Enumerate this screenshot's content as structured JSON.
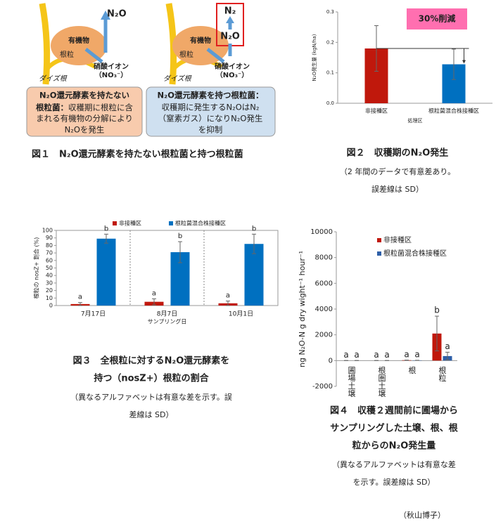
{
  "figure1": {
    "left": {
      "n2o": "N₂O",
      "organic": "有機物",
      "nodule": "根粒",
      "root": "ダイズ根",
      "nitrate": "硝酸イオン",
      "nitrate_formula": "（NO₃⁻）",
      "head": [
        "N₂O還元酵素を持たない",
        "根粒菌："
      ],
      "body": [
        "収穫期に根粒に含",
        "まれる有機物の分解により",
        "N₂Oを発生"
      ]
    },
    "right": {
      "n2": "N₂",
      "n2o": "N₂O",
      "organic": "有機物",
      "nodule": "根粒",
      "root": "ダイズ根",
      "nitrate": "硝酸イオン",
      "nitrate_formula": "（NO₃⁻）",
      "head": [
        "N₂O還元酵素を持つ根粒菌："
      ],
      "body": [
        "収穫期に発生するN₂OはN₂",
        "（窒素ガス）になりN₂O発生",
        "を抑制"
      ]
    }
  },
  "chart_data": [
    {
      "type": "bar",
      "y_label": "N₂O発生量 (kgN/ha)",
      "x_label": "処理区",
      "annotation": "30%削減",
      "categories": [
        "非接種区",
        "根粒菌混合株接種区"
      ],
      "series": [
        {
          "colors": [
            "#c0180c",
            "#0070c0"
          ],
          "values": [
            0.18,
            0.128
          ],
          "errors": [
            0.075,
            0.05
          ]
        }
      ],
      "ylim": [
        0,
        0.3
      ],
      "yticks": [
        {
          "value": 0,
          "label": "0.0"
        },
        0.1,
        0.2,
        0.3
      ]
    },
    {
      "type": "bar",
      "y_label": "根粒の nosZ+ 割合 (%)",
      "x_label": "サンプリング日",
      "frame": true,
      "legend": "top",
      "categories": [
        "7月17日",
        "8月7日",
        "10月1日"
      ],
      "series": [
        {
          "name": "非接種区",
          "color": "#c0180c",
          "values": [
            2,
            5,
            3
          ],
          "errors": [
            2,
            4,
            3
          ],
          "letters": [
            "a",
            "a",
            "a"
          ]
        },
        {
          "name": "根粒菌混合株接種区",
          "color": "#0070c0",
          "values": [
            89,
            71,
            82
          ],
          "errors": [
            6,
            14,
            13
          ],
          "letters": [
            "b",
            "b",
            "b"
          ]
        }
      ],
      "ylim": [
        0,
        100
      ],
      "yticks": [
        0,
        10,
        20,
        30,
        40,
        50,
        60,
        70,
        80,
        90,
        100
      ]
    },
    {
      "type": "bar",
      "y_label": "ng N₂O-N g dry wight⁻¹ hour⁻¹",
      "legend": "upper left",
      "categories": [
        "圃場土壌",
        "根圏土壌",
        "根",
        "根粒"
      ],
      "series": [
        {
          "name": "非接種区",
          "color": "#c0180c",
          "values": [
            0,
            0,
            30,
            2100
          ],
          "errors": [
            0,
            0,
            0,
            1350
          ],
          "letters": [
            "a",
            "a",
            "a",
            "b"
          ]
        },
        {
          "name": "根粒菌混合株接種区",
          "color": "#2e5fa8",
          "values": [
            0,
            0,
            20,
            350
          ],
          "errors": [
            0,
            0,
            0,
            300
          ],
          "letters": [
            "a",
            "a",
            "a",
            "a"
          ]
        }
      ],
      "ylim": [
        -2000,
        10000
      ],
      "yticks": [
        -2000,
        0,
        2000,
        4000,
        6000,
        8000,
        10000
      ]
    }
  ],
  "captions": [
    {
      "title": [
        "図１　N₂O還元酵素を持たない根粒菌と持つ根粒菌"
      ],
      "note": []
    },
    {
      "title": [
        "図２　収穫期のN₂O発生"
      ],
      "note": [
        "（2 年間のデータで有意差あり。",
        "誤差線は SD）"
      ]
    },
    {
      "title": [
        "図３　全根粒に対するN₂O還元酵素を",
        "持つ（nosZ+）根粒の割合"
      ],
      "note": [
        "（異なるアルファベットは有意な差を示す。誤",
        "差線は SD）"
      ]
    },
    {
      "title": [
        "図４　収穫２週間前に圃場から",
        "サンプリングした土壌、根、根",
        "粒からのN₂O発生量"
      ],
      "note": [
        "（異なるアルファベットは有意な差",
        "を示す。誤差線は SD）"
      ]
    }
  ],
  "author": "（秋山博子）"
}
